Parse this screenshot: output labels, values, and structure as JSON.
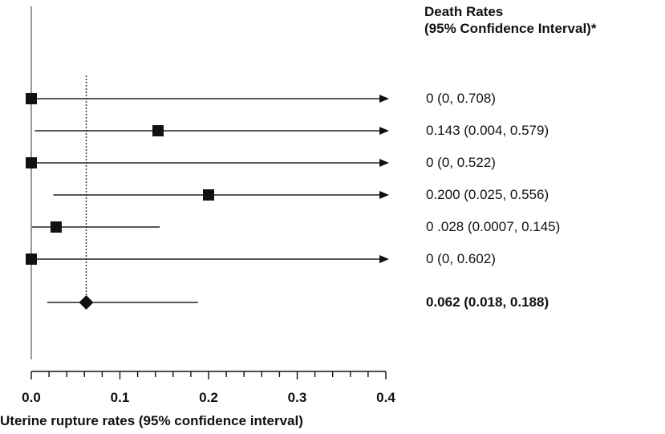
{
  "chart_data": {
    "type": "scatter",
    "subtype": "forest-plot",
    "xlabel": "Uterine rupture rates (95% confidence interval)",
    "xlim": [
      0.0,
      0.4
    ],
    "xticks": [
      "0.0",
      "0.1",
      "0.2",
      "0.3",
      "0.4"
    ],
    "minor_tick_step": 0.02,
    "reference_line_x": 0.0,
    "pooled_line_x": 0.062,
    "column_header": [
      "Death Rates",
      "(95% Confidence Interval)*"
    ],
    "rows": [
      {
        "estimate": 0.0,
        "lower": 0.0,
        "upper": 0.708,
        "label": "0 (0, 0.708)",
        "marker": "square",
        "arrow": true,
        "bold": false
      },
      {
        "estimate": 0.143,
        "lower": 0.004,
        "upper": 0.579,
        "label": "0.143 (0.004, 0.579)",
        "marker": "square",
        "arrow": true,
        "bold": false
      },
      {
        "estimate": 0.0,
        "lower": 0.0,
        "upper": 0.522,
        "label": "0 (0, 0.522)",
        "marker": "square",
        "arrow": true,
        "bold": false
      },
      {
        "estimate": 0.2,
        "lower": 0.025,
        "upper": 0.556,
        "label": "0.200 (0.025, 0.556)",
        "marker": "square",
        "arrow": true,
        "bold": false
      },
      {
        "estimate": 0.028,
        "lower": 0.0007,
        "upper": 0.145,
        "label": "0 .028 (0.0007, 0.145)",
        "marker": "square",
        "arrow": false,
        "bold": false
      },
      {
        "estimate": 0.0,
        "lower": 0.0,
        "upper": 0.602,
        "label": "0 (0, 0.602)",
        "marker": "square",
        "arrow": true,
        "bold": false
      },
      {
        "estimate": 0.062,
        "lower": 0.018,
        "upper": 0.188,
        "label": "0.062 (0.018, 0.188)",
        "marker": "diamond",
        "arrow": false,
        "bold": true
      }
    ],
    "grid": false,
    "legend": "none"
  }
}
